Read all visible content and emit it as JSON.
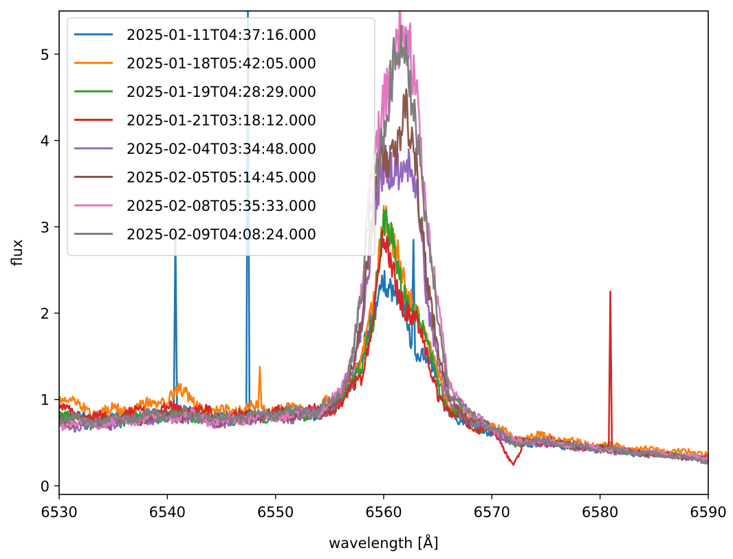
{
  "chart_data": {
    "type": "line",
    "title": "",
    "xlabel": "wavelength [Å]",
    "ylabel": "flux",
    "xlim": [
      6530,
      6590
    ],
    "ylim": [
      -0.1,
      5.5
    ],
    "xticks": [
      6530,
      6540,
      6550,
      6560,
      6570,
      6580,
      6590
    ],
    "yticks": [
      0,
      1,
      2,
      3,
      4,
      5
    ],
    "grid": false,
    "legend_position": "top-left",
    "series": [
      {
        "name": "2025-01-11T04:37:16.000",
        "color": "#1f77b4",
        "points": [
          [
            6530,
            0.85
          ],
          [
            6533,
            0.75
          ],
          [
            6536,
            0.78
          ],
          [
            6539,
            0.82
          ],
          [
            6540.6,
            0.85
          ],
          [
            6540.75,
            2.95
          ],
          [
            6540.9,
            0.85
          ],
          [
            6544,
            0.8
          ],
          [
            6547.3,
            0.78
          ],
          [
            6547.45,
            5.5
          ],
          [
            6547.6,
            0.78
          ],
          [
            6550,
            0.82
          ],
          [
            6553,
            0.84
          ],
          [
            6555,
            0.88
          ],
          [
            6557,
            1.2
          ],
          [
            6558,
            1.5
          ],
          [
            6559,
            1.9
          ],
          [
            6560,
            2.45
          ],
          [
            6561,
            2.3
          ],
          [
            6562,
            1.9
          ],
          [
            6562.6,
            1.65
          ],
          [
            6562.75,
            2.85
          ],
          [
            6562.9,
            1.6
          ],
          [
            6564,
            1.55
          ],
          [
            6565,
            1.2
          ],
          [
            6566,
            0.85
          ],
          [
            6568,
            0.7
          ],
          [
            6570,
            0.62
          ],
          [
            6572,
            0.5
          ],
          [
            6575,
            0.5
          ],
          [
            6578,
            0.45
          ],
          [
            6581,
            0.4
          ],
          [
            6584,
            0.37
          ],
          [
            6587,
            0.35
          ],
          [
            6590,
            0.32
          ]
        ]
      },
      {
        "name": "2025-01-18T05:42:05.000",
        "color": "#ff7f0e",
        "points": [
          [
            6530,
            1.05
          ],
          [
            6533,
            0.85
          ],
          [
            6536,
            0.88
          ],
          [
            6539,
            0.95
          ],
          [
            6541,
            1.1
          ],
          [
            6544,
            0.85
          ],
          [
            6547,
            0.9
          ],
          [
            6548.4,
            0.9
          ],
          [
            6548.55,
            1.38
          ],
          [
            6548.7,
            0.9
          ],
          [
            6551,
            0.88
          ],
          [
            6554,
            0.9
          ],
          [
            6556,
            1.05
          ],
          [
            6558,
            1.4
          ],
          [
            6559,
            2.1
          ],
          [
            6560,
            3.2
          ],
          [
            6561,
            2.7
          ],
          [
            6562,
            2.3
          ],
          [
            6563,
            2.1
          ],
          [
            6564,
            1.7
          ],
          [
            6565,
            1.3
          ],
          [
            6566,
            0.95
          ],
          [
            6568,
            0.78
          ],
          [
            6570,
            0.7
          ],
          [
            6572,
            0.55
          ],
          [
            6575,
            0.58
          ],
          [
            6578,
            0.5
          ],
          [
            6581,
            0.46
          ],
          [
            6584,
            0.43
          ],
          [
            6587,
            0.4
          ],
          [
            6590,
            0.38
          ]
        ]
      },
      {
        "name": "2025-01-19T04:28:29.000",
        "color": "#2ca02c",
        "points": [
          [
            6530,
            0.8
          ],
          [
            6533,
            0.72
          ],
          [
            6536,
            0.76
          ],
          [
            6539,
            0.8
          ],
          [
            6542,
            0.82
          ],
          [
            6545,
            0.76
          ],
          [
            6548,
            0.8
          ],
          [
            6551,
            0.82
          ],
          [
            6554,
            0.85
          ],
          [
            6556,
            1.0
          ],
          [
            6558,
            1.35
          ],
          [
            6559,
            2.0
          ],
          [
            6560,
            3.1
          ],
          [
            6561,
            2.65
          ],
          [
            6562,
            2.2
          ],
          [
            6563,
            2.0
          ],
          [
            6564,
            1.6
          ],
          [
            6565,
            1.2
          ],
          [
            6566,
            0.9
          ],
          [
            6568,
            0.72
          ],
          [
            6570,
            0.65
          ],
          [
            6572,
            0.5
          ],
          [
            6575,
            0.52
          ],
          [
            6578,
            0.46
          ],
          [
            6581,
            0.42
          ],
          [
            6584,
            0.38
          ],
          [
            6587,
            0.35
          ],
          [
            6590,
            0.32
          ]
        ]
      },
      {
        "name": "2025-01-21T03:18:12.000",
        "color": "#d62728",
        "points": [
          [
            6530,
            0.9
          ],
          [
            6533,
            0.78
          ],
          [
            6536,
            0.82
          ],
          [
            6539,
            0.88
          ],
          [
            6542,
            0.9
          ],
          [
            6545,
            0.8
          ],
          [
            6548,
            0.82
          ],
          [
            6551,
            0.85
          ],
          [
            6554,
            0.86
          ],
          [
            6556,
            0.95
          ],
          [
            6558,
            1.25
          ],
          [
            6559,
            1.9
          ],
          [
            6560,
            2.85
          ],
          [
            6561,
            2.4
          ],
          [
            6562,
            2.1
          ],
          [
            6563,
            1.9
          ],
          [
            6564,
            1.5
          ],
          [
            6565,
            1.1
          ],
          [
            6566,
            0.85
          ],
          [
            6568,
            0.7
          ],
          [
            6570,
            0.63
          ],
          [
            6572,
            0.25
          ],
          [
            6573,
            0.5
          ],
          [
            6575,
            0.5
          ],
          [
            6578,
            0.46
          ],
          [
            6580.8,
            0.42
          ],
          [
            6580.95,
            2.25
          ],
          [
            6581.1,
            0.42
          ],
          [
            6584,
            0.38
          ],
          [
            6587,
            0.35
          ],
          [
            6590,
            0.32
          ]
        ]
      },
      {
        "name": "2025-02-04T03:34:48.000",
        "color": "#9467bd",
        "points": [
          [
            6530,
            0.7
          ],
          [
            6533,
            0.7
          ],
          [
            6536,
            0.74
          ],
          [
            6539,
            0.78
          ],
          [
            6542,
            0.8
          ],
          [
            6545,
            0.72
          ],
          [
            6548,
            0.78
          ],
          [
            6551,
            0.8
          ],
          [
            6554,
            0.84
          ],
          [
            6556,
            1.0
          ],
          [
            6557,
            1.3
          ],
          [
            6558,
            1.9
          ],
          [
            6559,
            3.0
          ],
          [
            6560,
            3.6
          ],
          [
            6561,
            3.75
          ],
          [
            6562,
            3.8
          ],
          [
            6563,
            3.4
          ],
          [
            6564,
            2.2
          ],
          [
            6565,
            1.5
          ],
          [
            6566,
            0.95
          ],
          [
            6568,
            0.75
          ],
          [
            6570,
            0.65
          ],
          [
            6572,
            0.5
          ],
          [
            6575,
            0.5
          ],
          [
            6578,
            0.45
          ],
          [
            6581,
            0.4
          ],
          [
            6584,
            0.37
          ],
          [
            6587,
            0.34
          ],
          [
            6590,
            0.3
          ]
        ]
      },
      {
        "name": "2025-02-05T05:14:45.000",
        "color": "#8c564b",
        "points": [
          [
            6530,
            0.75
          ],
          [
            6533,
            0.72
          ],
          [
            6536,
            0.76
          ],
          [
            6539,
            0.8
          ],
          [
            6542,
            0.82
          ],
          [
            6545,
            0.74
          ],
          [
            6548,
            0.8
          ],
          [
            6551,
            0.82
          ],
          [
            6554,
            0.85
          ],
          [
            6556,
            1.0
          ],
          [
            6557,
            1.35
          ],
          [
            6558,
            2.0
          ],
          [
            6559,
            3.1
          ],
          [
            6560,
            3.9
          ],
          [
            6561,
            4.0
          ],
          [
            6562,
            4.25
          ],
          [
            6563,
            3.6
          ],
          [
            6564,
            2.5
          ],
          [
            6565,
            1.6
          ],
          [
            6566,
            1.0
          ],
          [
            6568,
            0.78
          ],
          [
            6570,
            0.67
          ],
          [
            6572,
            0.52
          ],
          [
            6575,
            0.52
          ],
          [
            6578,
            0.46
          ],
          [
            6581,
            0.41
          ],
          [
            6584,
            0.38
          ],
          [
            6587,
            0.35
          ],
          [
            6590,
            0.31
          ]
        ]
      },
      {
        "name": "2025-02-08T05:35:33.000",
        "color": "#e377c2",
        "points": [
          [
            6530,
            0.72
          ],
          [
            6533,
            0.72
          ],
          [
            6536,
            0.76
          ],
          [
            6539,
            0.8
          ],
          [
            6542,
            0.82
          ],
          [
            6545,
            0.74
          ],
          [
            6548,
            0.8
          ],
          [
            6551,
            0.82
          ],
          [
            6554,
            0.86
          ],
          [
            6556,
            1.05
          ],
          [
            6557,
            1.5
          ],
          [
            6558,
            2.3
          ],
          [
            6559,
            3.6
          ],
          [
            6560,
            4.6
          ],
          [
            6561,
            5.0
          ],
          [
            6562,
            5.18
          ],
          [
            6563,
            4.6
          ],
          [
            6564,
            3.2
          ],
          [
            6565,
            2.0
          ],
          [
            6566,
            1.2
          ],
          [
            6568,
            0.82
          ],
          [
            6570,
            0.68
          ],
          [
            6572,
            0.52
          ],
          [
            6575,
            0.53
          ],
          [
            6578,
            0.47
          ],
          [
            6581,
            0.42
          ],
          [
            6584,
            0.39
          ],
          [
            6587,
            0.36
          ],
          [
            6590,
            0.32
          ]
        ]
      },
      {
        "name": "2025-02-09T04:08:24.000",
        "color": "#7f7f7f",
        "points": [
          [
            6530,
            0.78
          ],
          [
            6533,
            0.74
          ],
          [
            6536,
            0.78
          ],
          [
            6539,
            0.82
          ],
          [
            6542,
            0.84
          ],
          [
            6545,
            0.76
          ],
          [
            6548,
            0.82
          ],
          [
            6551,
            0.84
          ],
          [
            6554,
            0.88
          ],
          [
            6556,
            1.05
          ],
          [
            6557,
            1.45
          ],
          [
            6558,
            2.2
          ],
          [
            6559,
            3.4
          ],
          [
            6560,
            4.3
          ],
          [
            6561,
            4.8
          ],
          [
            6562,
            4.9
          ],
          [
            6563,
            4.4
          ],
          [
            6564,
            3.0
          ],
          [
            6565,
            1.9
          ],
          [
            6566,
            1.15
          ],
          [
            6568,
            0.8
          ],
          [
            6570,
            0.68
          ],
          [
            6572,
            0.5
          ],
          [
            6575,
            0.52
          ],
          [
            6578,
            0.46
          ],
          [
            6581,
            0.42
          ],
          [
            6584,
            0.38
          ],
          [
            6587,
            0.35
          ],
          [
            6590,
            0.28
          ]
        ]
      }
    ]
  }
}
